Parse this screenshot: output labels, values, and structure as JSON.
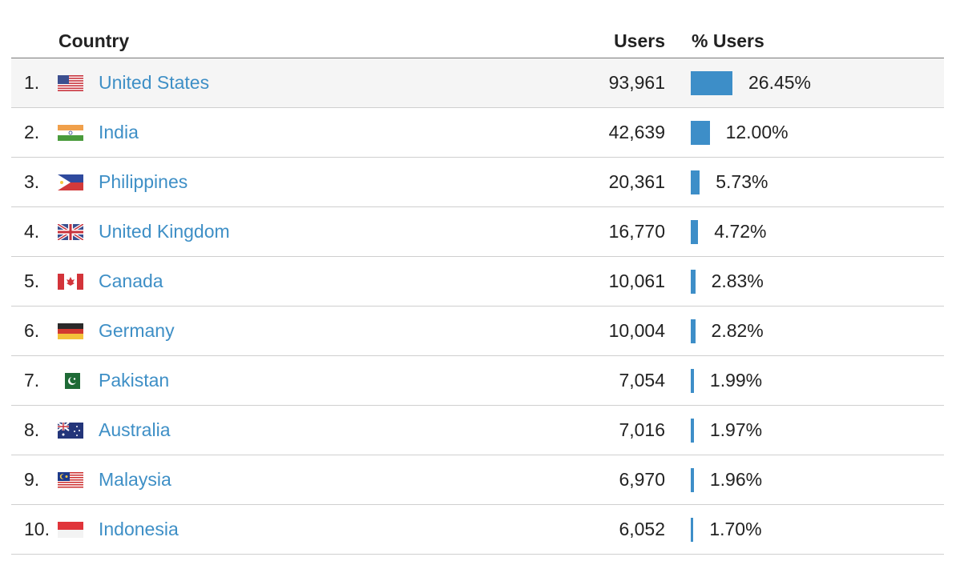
{
  "header": {
    "country_label": "Country",
    "users_label": "Users",
    "pct_label": "% Users"
  },
  "rows": [
    {
      "rank": "1.",
      "country": "United States",
      "flag": "us-flag-icon",
      "users": "93,961",
      "pct": "26.45%",
      "share": 26.45
    },
    {
      "rank": "2.",
      "country": "India",
      "flag": "india-flag-icon",
      "users": "42,639",
      "pct": "12.00%",
      "share": 12.0
    },
    {
      "rank": "3.",
      "country": "Philippines",
      "flag": "philippines-flag-icon",
      "users": "20,361",
      "pct": "5.73%",
      "share": 5.73
    },
    {
      "rank": "4.",
      "country": "United Kingdom",
      "flag": "uk-flag-icon",
      "users": "16,770",
      "pct": "4.72%",
      "share": 4.72
    },
    {
      "rank": "5.",
      "country": "Canada",
      "flag": "canada-flag-icon",
      "users": "10,061",
      "pct": "2.83%",
      "share": 2.83
    },
    {
      "rank": "6.",
      "country": "Germany",
      "flag": "germany-flag-icon",
      "users": "10,004",
      "pct": "2.82%",
      "share": 2.82
    },
    {
      "rank": "7.",
      "country": "Pakistan",
      "flag": "pakistan-flag-icon",
      "users": "7,054",
      "pct": "1.99%",
      "share": 1.99
    },
    {
      "rank": "8.",
      "country": "Australia",
      "flag": "australia-flag-icon",
      "users": "7,016",
      "pct": "1.97%",
      "share": 1.97
    },
    {
      "rank": "9.",
      "country": "Malaysia",
      "flag": "malaysia-flag-icon",
      "users": "6,970",
      "pct": "1.96%",
      "share": 1.96
    },
    {
      "rank": "10.",
      "country": "Indonesia",
      "flag": "indonesia-flag-icon",
      "users": "6,052",
      "pct": "1.70%",
      "share": 1.7
    }
  ],
  "colors": {
    "link": "#3e8fc6",
    "bar": "#3d8ec8",
    "row_shade": "#f5f5f5"
  }
}
